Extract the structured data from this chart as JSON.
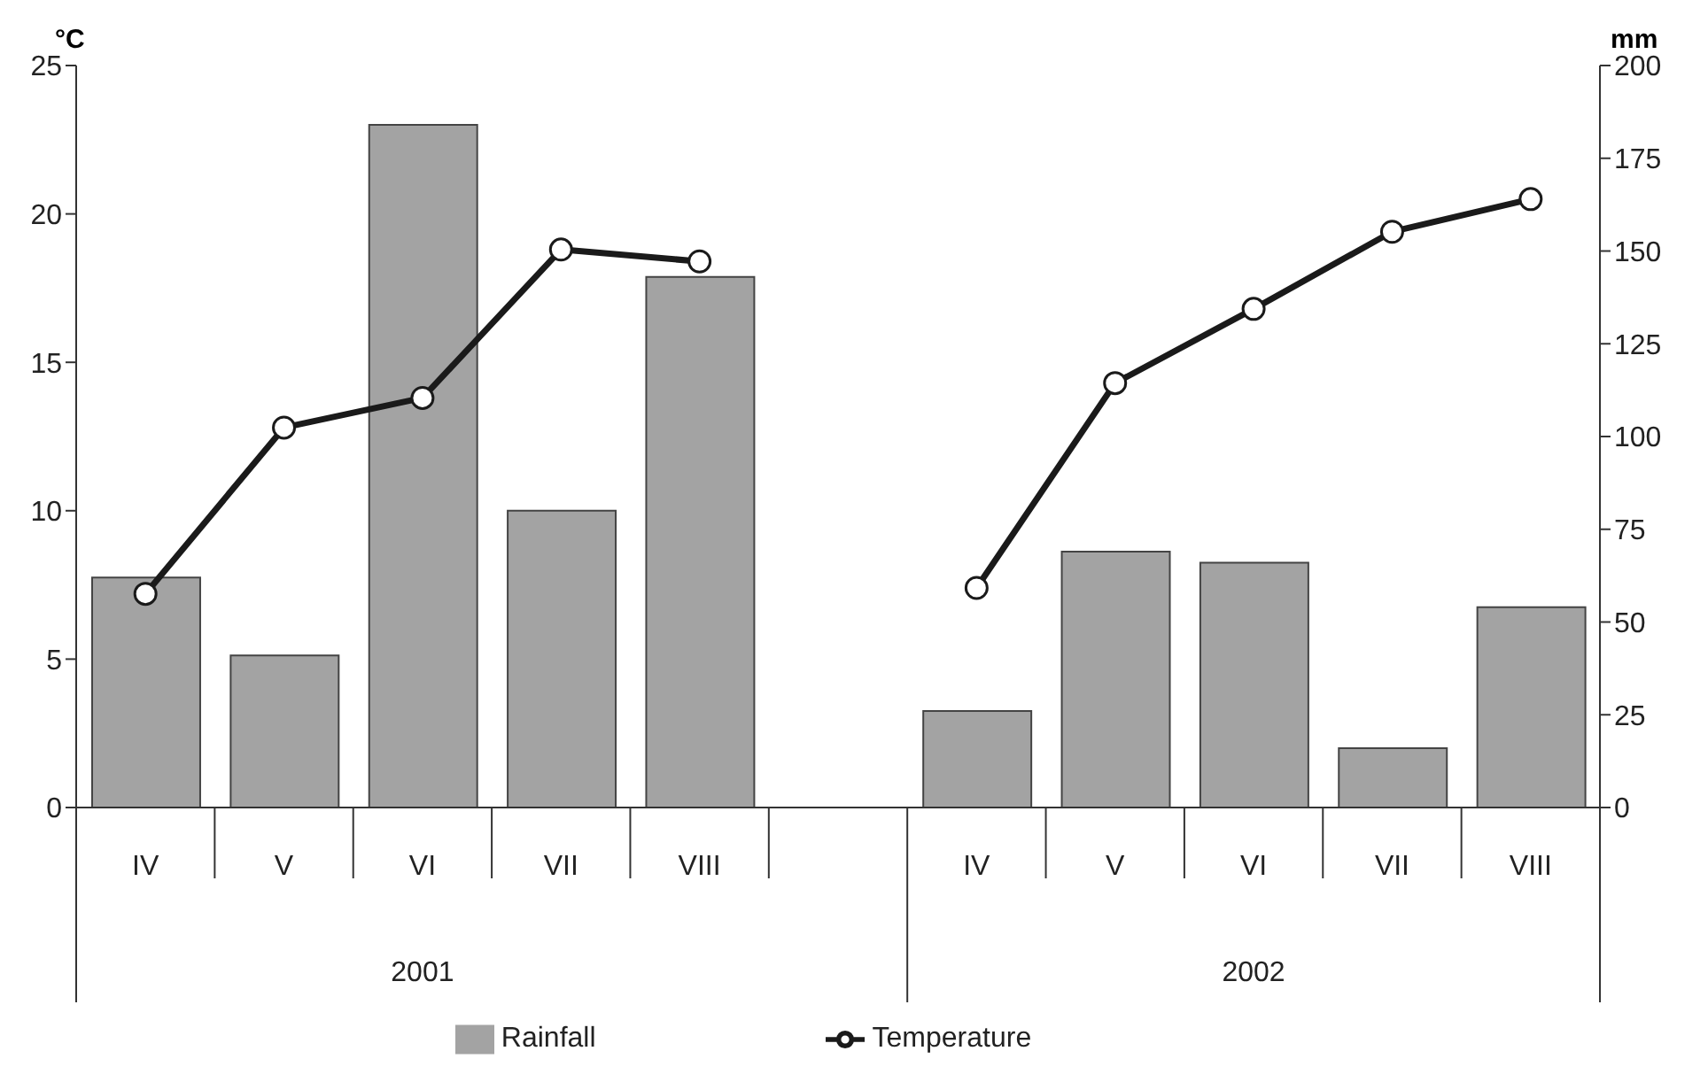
{
  "chart_data": {
    "type": "bar",
    "ylabel": "°C",
    "y2label": "mm",
    "categories": [
      "IV",
      "V",
      "VI",
      "VII",
      "VIII",
      null,
      "IV",
      "V",
      "VI",
      "VII",
      "VIII"
    ],
    "series": [
      {
        "name": "Rainfall",
        "axis": "y2",
        "color": "#a3a3a3",
        "values": [
          62,
          41,
          184,
          80,
          143,
          null,
          26,
          69,
          66,
          16,
          54
        ]
      },
      {
        "name": "Temperature",
        "type": "line",
        "axis": "y",
        "color": "#1a1a1a",
        "marker": "circle",
        "values": [
          7.2,
          12.8,
          13.8,
          18.8,
          18.4,
          null,
          7.4,
          14.3,
          16.8,
          19.4,
          20.5
        ]
      }
    ],
    "ylim": [
      0,
      25
    ],
    "yticks": [
      0,
      5,
      10,
      15,
      20,
      25
    ],
    "y2lim": [
      0,
      200
    ],
    "y2ticks": [
      0,
      25,
      50,
      75,
      100,
      125,
      150,
      175,
      200
    ],
    "annotations": [
      "2001",
      "2002"
    ],
    "legend": "bottom"
  }
}
